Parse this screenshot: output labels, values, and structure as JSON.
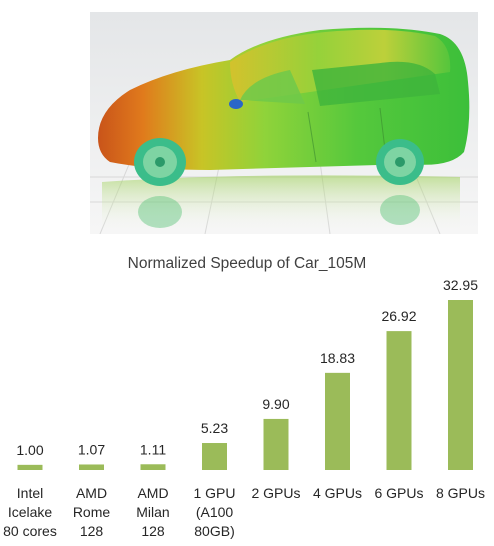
{
  "chart_data": {
    "type": "bar",
    "title": "Normalized Speedup of Car_105M",
    "categories": [
      [
        "Intel",
        "Icelake",
        "80 cores"
      ],
      [
        "AMD",
        "Rome",
        "128"
      ],
      [
        "AMD",
        "Milan",
        "128"
      ],
      [
        "1 GPU",
        "(A100",
        "80GB)"
      ],
      [
        "2 GPUs"
      ],
      [
        "4 GPUs"
      ],
      [
        "6 GPUs"
      ],
      [
        "8 GPUs"
      ]
    ],
    "values": [
      1.0,
      1.07,
      1.11,
      5.23,
      9.9,
      18.83,
      26.92,
      32.95
    ],
    "value_labels": [
      "1.00",
      "1.07",
      "1.11",
      "5.23",
      "9.90",
      "18.83",
      "26.92",
      "32.95"
    ],
    "ylim": [
      0,
      32.95
    ],
    "bar_color": "#9bbb59",
    "grid": false,
    "legend": "none"
  }
}
